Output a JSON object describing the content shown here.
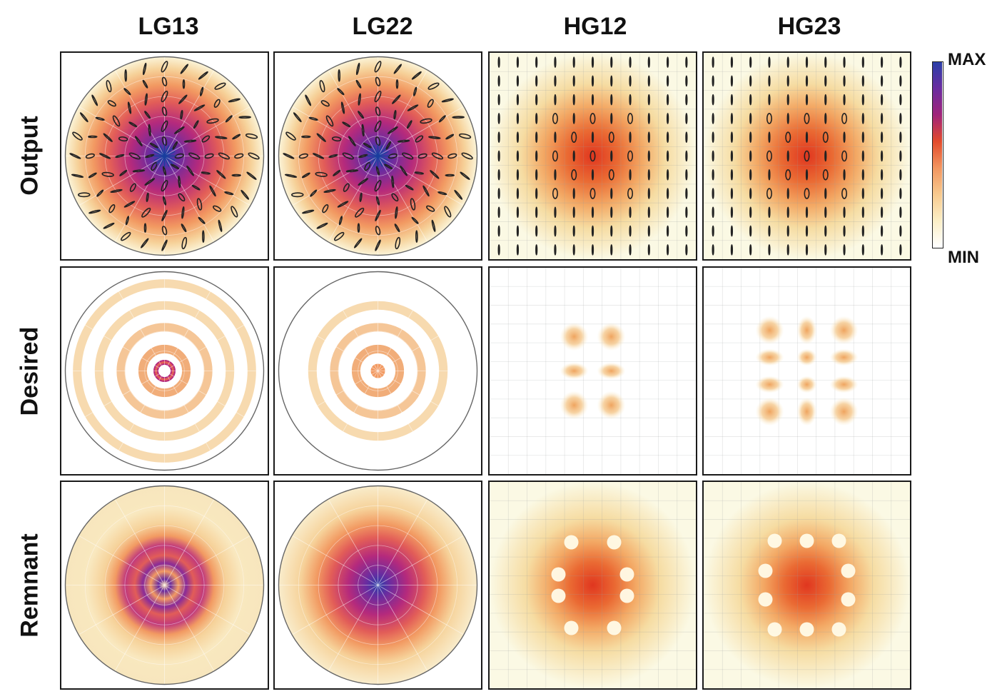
{
  "columns": [
    "LG13",
    "LG22",
    "HG12",
    "HG23"
  ],
  "rows": [
    "Output",
    "Desired",
    "Remnant"
  ],
  "colorbar": {
    "max_label": "MAX",
    "min_label": "MIN",
    "stops": [
      "#ffffff",
      "#fbeec6",
      "#f7c98e",
      "#f2955f",
      "#e24b2c",
      "#a0247a",
      "#6a2ca0",
      "#2a3fa8"
    ]
  },
  "panels": [
    {
      "name": "output-lg13",
      "kind": "polar-beam",
      "overlay": "ellipses"
    },
    {
      "name": "output-lg22",
      "kind": "polar-beam",
      "overlay": "ellipses"
    },
    {
      "name": "output-hg12",
      "kind": "square-beam",
      "overlay": "ellipses"
    },
    {
      "name": "output-hg23",
      "kind": "square-beam",
      "overlay": "ellipses"
    },
    {
      "name": "desired-lg13",
      "kind": "polar-rings",
      "rings": 4
    },
    {
      "name": "desired-lg22",
      "kind": "polar-rings",
      "rings": 3
    },
    {
      "name": "desired-hg12",
      "kind": "square-lobes",
      "nx": 2,
      "ny": 3
    },
    {
      "name": "desired-hg23",
      "kind": "square-lobes",
      "nx": 3,
      "ny": 4
    },
    {
      "name": "remnant-lg13",
      "kind": "polar-remnant",
      "rings": 4
    },
    {
      "name": "remnant-lg22",
      "kind": "polar-remnant",
      "rings": 3
    },
    {
      "name": "remnant-hg12",
      "kind": "square-remnant",
      "nx": 2,
      "ny": 3
    },
    {
      "name": "remnant-hg23",
      "kind": "square-remnant",
      "nx": 3,
      "ny": 4
    }
  ]
}
